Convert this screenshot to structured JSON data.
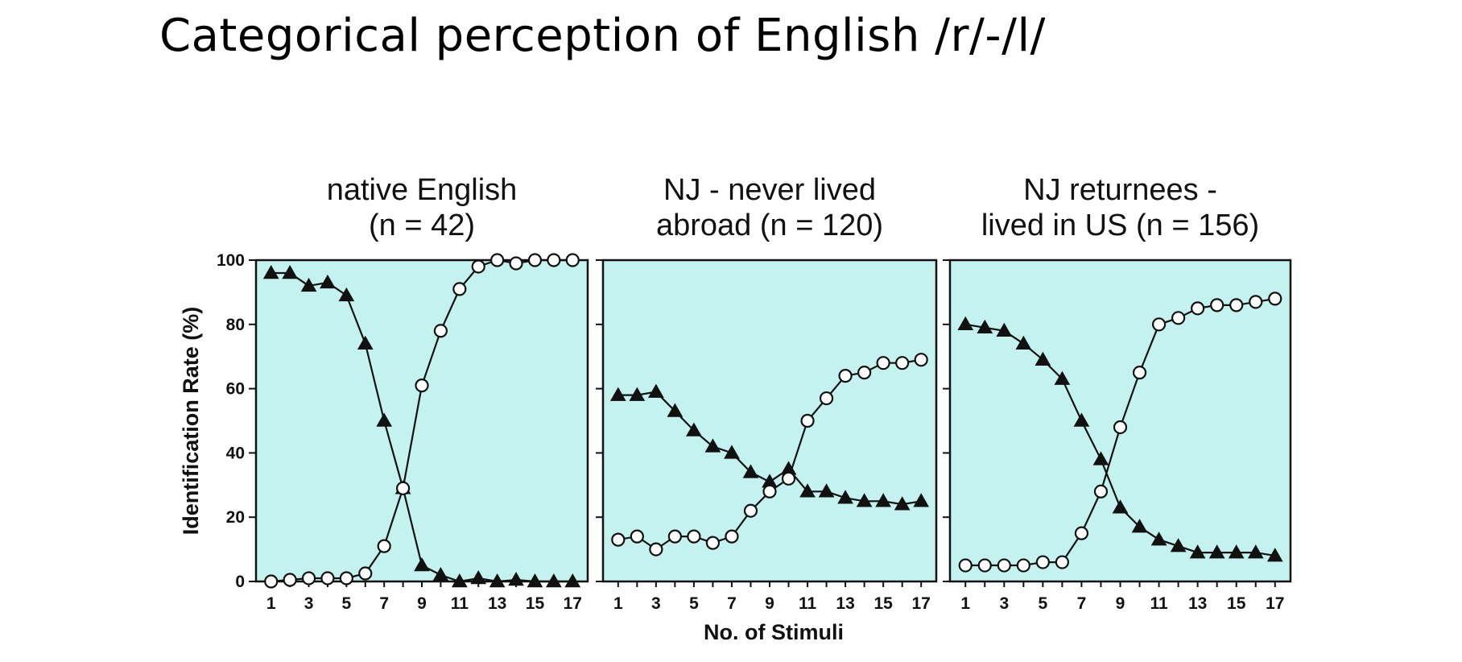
{
  "slide": {
    "title": "Categorical perception of English /r/-/l/"
  },
  "chart_data": {
    "type": "line",
    "ylabel": "Identification Rate (%)",
    "xlabel": "No. of Stimuli",
    "ylim": [
      0,
      100
    ],
    "yticks": [
      0,
      20,
      40,
      60,
      80,
      100
    ],
    "xticks": [
      1,
      3,
      5,
      7,
      9,
      11,
      13,
      15,
      17
    ],
    "xlim": [
      0.2,
      17.8
    ],
    "x": [
      1,
      2,
      3,
      4,
      5,
      6,
      7,
      8,
      9,
      10,
      11,
      12,
      13,
      14,
      15,
      16,
      17
    ],
    "background_color": "#c4f3ef",
    "line_color": "#111111",
    "panels": [
      {
        "title_lines": [
          "native English",
          "(n = 42)"
        ],
        "series": [
          {
            "marker": "filled-triangle",
            "values": [
              96,
              96,
              92,
              93,
              89,
              74,
              50,
              29,
              5,
              2,
              0,
              1,
              0,
              0.5,
              0,
              0,
              0
            ]
          },
          {
            "marker": "open-circle",
            "values": [
              0,
              0.5,
              1,
              1,
              1,
              2.5,
              11,
              29,
              61,
              78,
              91,
              98,
              100,
              99,
              100,
              100,
              100
            ]
          }
        ]
      },
      {
        "title_lines": [
          "NJ - never lived",
          "abroad (n = 120)"
        ],
        "series": [
          {
            "marker": "filled-triangle",
            "values": [
              58,
              58,
              59,
              53,
              47,
              42,
              40,
              34,
              31,
              35,
              28,
              28,
              26,
              25,
              25,
              24,
              25
            ]
          },
          {
            "marker": "open-circle",
            "values": [
              13,
              14,
              10,
              14,
              14,
              12,
              14,
              22,
              28,
              32,
              50,
              57,
              64,
              65,
              68,
              68,
              69
            ]
          }
        ]
      },
      {
        "title_lines": [
          "NJ returnees -",
          "lived in US (n = 156)"
        ],
        "series": [
          {
            "marker": "filled-triangle",
            "values": [
              80,
              79,
              78,
              74,
              69,
              63,
              50,
              38,
              23,
              17,
              13,
              11,
              9,
              9,
              9,
              9,
              8
            ]
          },
          {
            "marker": "open-circle",
            "values": [
              5,
              5,
              5,
              5,
              6,
              6,
              15,
              28,
              48,
              65,
              80,
              82,
              85,
              86,
              86,
              87,
              88
            ]
          }
        ]
      }
    ]
  }
}
